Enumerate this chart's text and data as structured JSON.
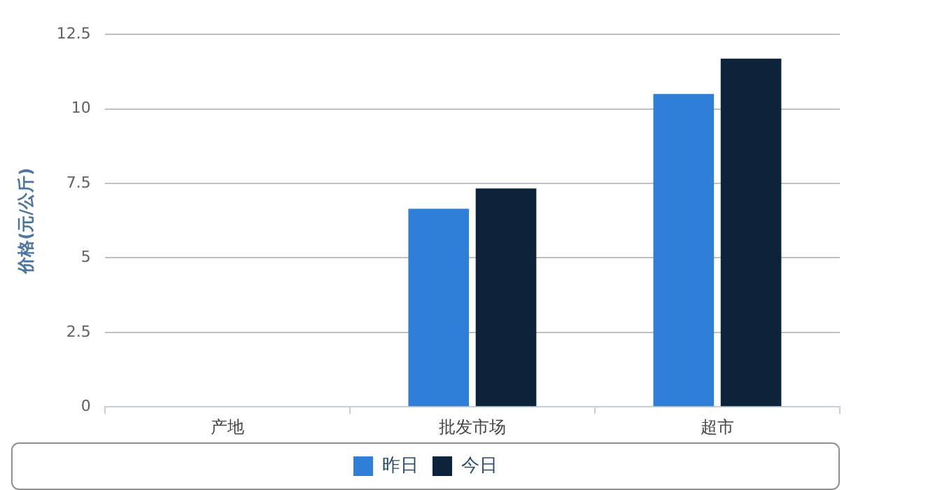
{
  "chart_data": {
    "type": "bar",
    "ylabel": "价格(元/公斤)",
    "categories": [
      "产地",
      "批发市场",
      "超市"
    ],
    "series": [
      {
        "name": "昨日",
        "color": "#2f7ed8",
        "values": [
          null,
          6.65,
          10.5
        ]
      },
      {
        "name": "今日",
        "color": "#0d233a",
        "values": [
          null,
          7.33,
          11.69
        ]
      }
    ],
    "ylim": [
      0,
      12.5
    ],
    "yticks": [
      0,
      2.5,
      5,
      7.5,
      10,
      12.5
    ],
    "grid": "y",
    "legend": "bottom"
  }
}
